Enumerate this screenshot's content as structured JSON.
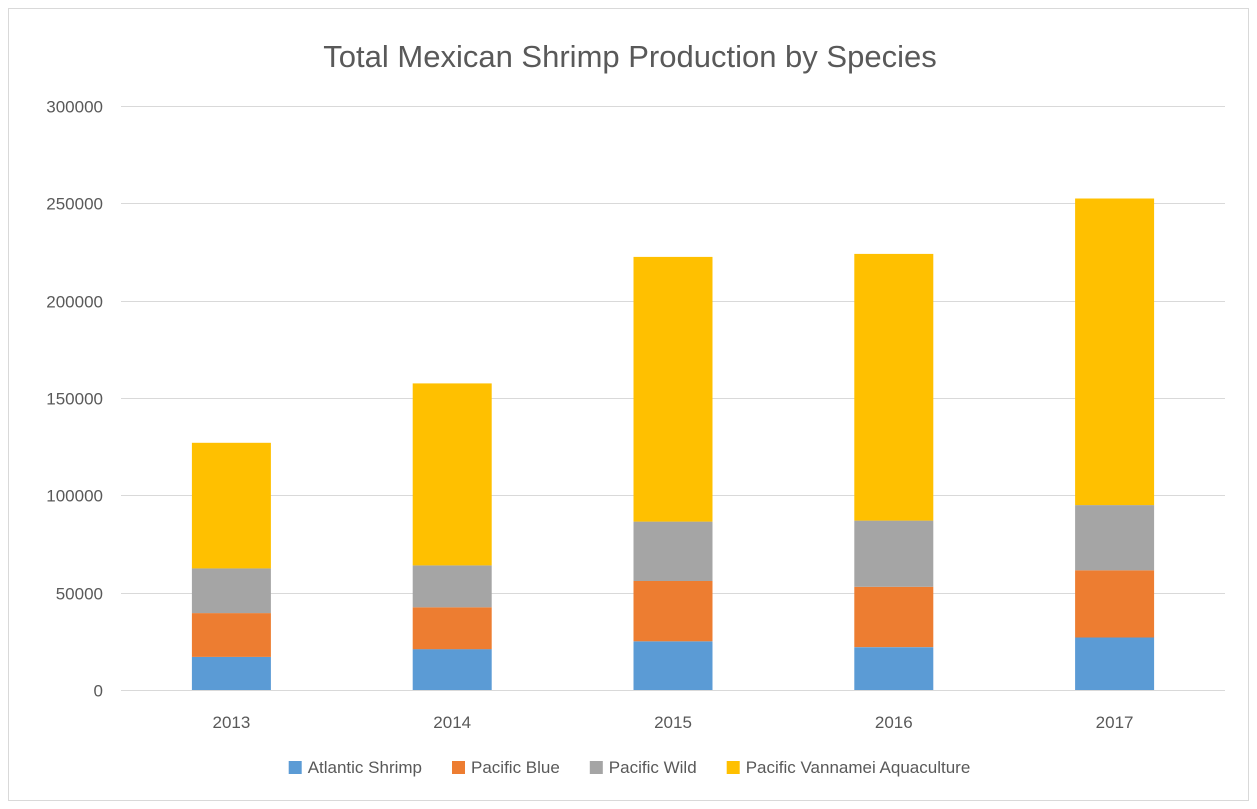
{
  "chart_data": {
    "type": "bar",
    "stacked": true,
    "title": "Total Mexican Shrimp Production by Species",
    "xlabel": "",
    "ylabel": "",
    "categories": [
      "2013",
      "2014",
      "2015",
      "2016",
      "2017"
    ],
    "ylim": [
      0,
      300000
    ],
    "yticks": [
      "0",
      "50000",
      "100000",
      "150000",
      "200000",
      "250000",
      "300000"
    ],
    "grid": true,
    "legend_position": "bottom",
    "series": [
      {
        "name": "Atlantic Shrimp",
        "color": "#5b9bd5",
        "values": [
          17000,
          21000,
          25000,
          22000,
          27000
        ]
      },
      {
        "name": "Pacific Blue",
        "color": "#ed7d31",
        "values": [
          22500,
          21500,
          31000,
          31000,
          34500
        ]
      },
      {
        "name": "Pacific Wild",
        "color": "#a5a5a5",
        "values": [
          23000,
          21500,
          30500,
          34000,
          33500
        ]
      },
      {
        "name": "Pacific Vannamei Aquaculture",
        "color": "#ffc000",
        "values": [
          64500,
          93500,
          136000,
          137000,
          157500
        ]
      }
    ]
  }
}
